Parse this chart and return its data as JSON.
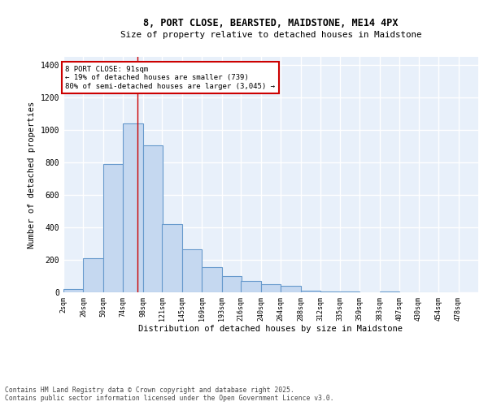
{
  "title_line1": "8, PORT CLOSE, BEARSTED, MAIDSTONE, ME14 4PX",
  "title_line2": "Size of property relative to detached houses in Maidstone",
  "xlabel": "Distribution of detached houses by size in Maidstone",
  "ylabel": "Number of detached properties",
  "footnote": "Contains HM Land Registry data © Crown copyright and database right 2025.\nContains public sector information licensed under the Open Government Licence v3.0.",
  "bar_color": "#c5d8f0",
  "bar_edge_color": "#6699cc",
  "bg_color": "#e8f0fa",
  "grid_color": "#ffffff",
  "annotation_box_color": "#cc0000",
  "vline_color": "#cc0000",
  "property_size": 91,
  "annotation_text": "8 PORT CLOSE: 91sqm\n← 19% of detached houses are smaller (739)\n80% of semi-detached houses are larger (3,045) →",
  "categories": [
    "2sqm",
    "26sqm",
    "50sqm",
    "74sqm",
    "98sqm",
    "121sqm",
    "145sqm",
    "169sqm",
    "193sqm",
    "216sqm",
    "240sqm",
    "264sqm",
    "288sqm",
    "312sqm",
    "335sqm",
    "359sqm",
    "383sqm",
    "407sqm",
    "430sqm",
    "454sqm",
    "478sqm"
  ],
  "bin_edges": [
    2,
    26,
    50,
    74,
    98,
    121,
    145,
    169,
    193,
    216,
    240,
    264,
    288,
    312,
    335,
    359,
    383,
    407,
    430,
    454,
    478
  ],
  "values": [
    20,
    210,
    790,
    1040,
    905,
    420,
    265,
    155,
    100,
    70,
    50,
    40,
    10,
    5,
    5,
    0,
    5,
    0,
    0,
    0
  ],
  "ylim": [
    0,
    1450
  ],
  "yticks": [
    0,
    200,
    400,
    600,
    800,
    1000,
    1200,
    1400
  ]
}
